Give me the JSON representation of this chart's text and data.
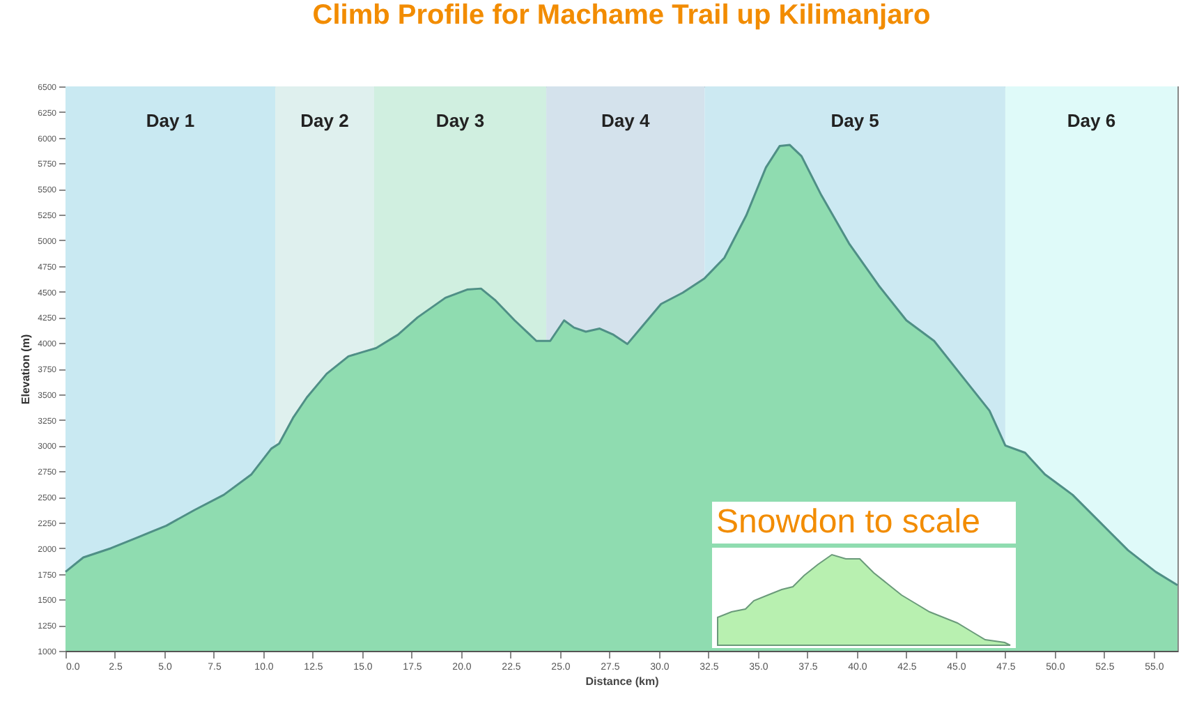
{
  "chart_data": {
    "type": "area",
    "title": "Climb Profile for Machame Trail up Kilimanjaro",
    "xlabel": "Distance (km)",
    "ylabel": "Elevation (m)",
    "x": [
      0,
      0.9,
      2.3,
      3.7,
      5.1,
      6.5,
      8.0,
      9.4,
      10.4,
      10.8,
      11.5,
      12.2,
      13.2,
      14.3,
      15.0,
      15.7,
      16.8,
      17.8,
      19.2,
      20.3,
      21.0,
      21.7,
      22.7,
      23.8,
      24.5,
      25.2,
      25.7,
      26.3,
      27.0,
      27.7,
      28.4,
      29.1,
      30.1,
      31.2,
      32.3,
      33.3,
      34.4,
      35.4,
      36.1,
      36.6,
      37.2,
      38.2,
      39.6,
      41.1,
      42.5,
      43.9,
      45.3,
      46.7,
      47.5,
      48.5,
      49.5,
      50.9,
      52.3,
      53.7,
      55.1,
      56.2
    ],
    "series": [
      {
        "color": "#8fdcb0",
        "values": [
          1770,
          1910,
          2000,
          2110,
          2220,
          2370,
          2520,
          2720,
          2970,
          3020,
          3270,
          3470,
          3700,
          3870,
          3910,
          3950,
          4080,
          4250,
          4440,
          4520,
          4530,
          4420,
          4220,
          4020,
          4020,
          4220,
          4150,
          4110,
          4140,
          4080,
          3990,
          4150,
          4380,
          4490,
          4630,
          4830,
          5240,
          5710,
          5920,
          5930,
          5820,
          5440,
          4970,
          4560,
          4220,
          4020,
          3680,
          3340,
          3000,
          2930,
          2720,
          2520,
          2250,
          1980,
          1770,
          1640
        ]
      }
    ],
    "xlim": [
      0,
      56.2
    ],
    "xticks": [
      {
        "value": 0,
        "label": "0.0"
      },
      {
        "value": 2.5,
        "label": "2.5"
      },
      {
        "value": 5,
        "label": "5.0"
      },
      {
        "value": 7.5,
        "label": "7.5"
      },
      {
        "value": 10,
        "label": "10.0"
      },
      {
        "value": 12.5,
        "label": "12.5"
      },
      {
        "value": 15,
        "label": "15.0"
      },
      {
        "value": 17.5,
        "label": "17.5"
      },
      {
        "value": 20,
        "label": "20.0"
      },
      {
        "value": 22.5,
        "label": "22.5"
      },
      {
        "value": 25,
        "label": "25.0"
      },
      {
        "value": 27.5,
        "label": "27.5"
      },
      {
        "value": 30,
        "label": "30.0"
      },
      {
        "value": 32.5,
        "label": "32.5"
      },
      {
        "value": 35,
        "label": "35.0"
      },
      {
        "value": 37.5,
        "label": "37.5"
      },
      {
        "value": 40,
        "label": "40.0"
      },
      {
        "value": 42.5,
        "label": "42.5"
      },
      {
        "value": 45,
        "label": "45.0"
      },
      {
        "value": 47.5,
        "label": "47.5"
      },
      {
        "value": 50,
        "label": "50.0"
      },
      {
        "value": 52.5,
        "label": "52.5"
      },
      {
        "value": 55,
        "label": "55.0"
      }
    ],
    "ylim": [
      1000,
      6500
    ],
    "yticks": [
      1000,
      1250,
      1500,
      1750,
      2000,
      2250,
      2500,
      2750,
      3000,
      3250,
      3500,
      3750,
      4000,
      4250,
      4500,
      4750,
      5000,
      5250,
      5500,
      5750,
      6000,
      6250,
      6500
    ],
    "bands": [
      {
        "axis": "x",
        "from": 0,
        "to": 10.6,
        "label": "Day 1",
        "color": "#c9e9f2"
      },
      {
        "axis": "x",
        "from": 10.6,
        "to": 15.6,
        "label": "Day 2",
        "color": "#dff0ee"
      },
      {
        "axis": "x",
        "from": 15.6,
        "to": 24.3,
        "label": "Day 3",
        "color": "#d0efe0"
      },
      {
        "axis": "x",
        "from": 24.3,
        "to": 32.3,
        "label": "Day 4",
        "color": "#d4e2ec"
      },
      {
        "axis": "x",
        "from": 32.3,
        "to": 47.5,
        "label": "Day 5",
        "color": "#cce9f2"
      },
      {
        "axis": "x",
        "from": 47.5,
        "to": 56.2,
        "label": "Day 6",
        "color": "#dffaf9"
      }
    ],
    "annotations": [
      "Snowdon to scale"
    ],
    "grid": false
  }
}
